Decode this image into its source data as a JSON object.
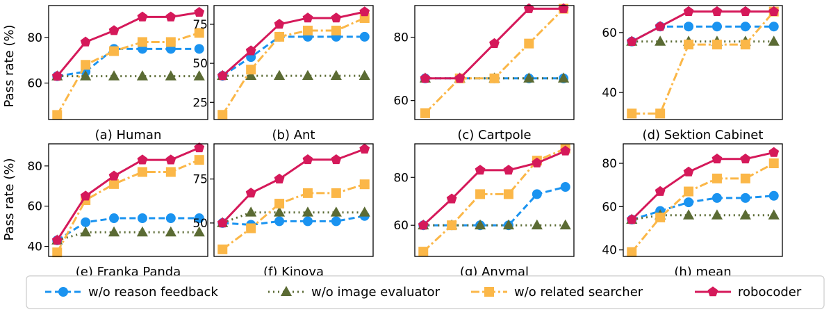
{
  "figure": {
    "ylabel": "Pass rate (%)",
    "legend_position": "bottom",
    "grid": false
  },
  "series_styles": [
    {
      "name": "w/o reason feedback",
      "color": "#1a93f0",
      "marker": "circle",
      "line": "dashed"
    },
    {
      "name": "w/o image evaluator",
      "color": "#5b6b34",
      "marker": "triangle",
      "line": "dotted"
    },
    {
      "name": "w/o related searcher",
      "color": "#fbb748",
      "marker": "square",
      "line": "dashdot"
    },
    {
      "name": "robocoder",
      "color": "#d5195a",
      "marker": "pentagon",
      "line": "solid"
    }
  ],
  "chart_data": [
    {
      "type": "line",
      "title": "(a) Human",
      "xlabel": "",
      "ylabel": "Pass rate (%)",
      "x": [
        1,
        2,
        3,
        4,
        5,
        6
      ],
      "xlim": [
        0.7,
        6.3
      ],
      "ylim": [
        44,
        94
      ],
      "yticks": [
        60,
        80
      ],
      "series": [
        {
          "name": "w/o reason feedback",
          "values": [
            63,
            65,
            75,
            75,
            75,
            75
          ]
        },
        {
          "name": "w/o image evaluator",
          "values": [
            63,
            63,
            63,
            63,
            63,
            63
          ]
        },
        {
          "name": "w/o related searcher",
          "values": [
            46,
            68,
            74,
            78,
            78,
            82
          ]
        },
        {
          "name": "robocoder",
          "values": [
            63,
            78,
            83,
            89,
            89,
            91
          ]
        }
      ]
    },
    {
      "type": "line",
      "title": "(b) Ant",
      "xlabel": "",
      "ylabel": "",
      "x": [
        1,
        2,
        3,
        4,
        5,
        6
      ],
      "xlim": [
        0.7,
        6.3
      ],
      "ylim": [
        14,
        87
      ],
      "yticks": [
        25,
        50,
        75
      ],
      "series": [
        {
          "name": "w/o reason feedback",
          "values": [
            42,
            54,
            67,
            67,
            67,
            67
          ]
        },
        {
          "name": "w/o image evaluator",
          "values": [
            42,
            42,
            42,
            42,
            42,
            42
          ]
        },
        {
          "name": "w/o related searcher",
          "values": [
            17,
            46,
            67,
            71,
            71,
            79
          ]
        },
        {
          "name": "robocoder",
          "values": [
            42,
            58,
            75,
            79,
            79,
            83
          ]
        }
      ]
    },
    {
      "type": "line",
      "title": "(c) Cartpole",
      "xlabel": "",
      "ylabel": "",
      "x": [
        1,
        2,
        3,
        4,
        5
      ],
      "xlim": [
        0.7,
        5.3
      ],
      "ylim": [
        54,
        90
      ],
      "yticks": [
        60,
        80
      ],
      "series": [
        {
          "name": "w/o reason feedback",
          "values": [
            67,
            67,
            67,
            67,
            67
          ]
        },
        {
          "name": "w/o image evaluator",
          "values": [
            67,
            67,
            67,
            67,
            67
          ]
        },
        {
          "name": "w/o related searcher",
          "values": [
            56,
            67,
            67,
            78,
            89
          ]
        },
        {
          "name": "robocoder",
          "values": [
            67,
            67,
            78,
            89,
            89
          ]
        }
      ]
    },
    {
      "type": "line",
      "title": "(d) Sektion Cabinet",
      "xlabel": "",
      "ylabel": "",
      "x": [
        1,
        2,
        3,
        4,
        5,
        6
      ],
      "xlim": [
        0.7,
        6.3
      ],
      "ylim": [
        31,
        69
      ],
      "yticks": [
        40,
        60
      ],
      "series": [
        {
          "name": "w/o reason feedback",
          "values": [
            57,
            62,
            62,
            62,
            62,
            62
          ]
        },
        {
          "name": "w/o image evaluator",
          "values": [
            57,
            57,
            57,
            57,
            57,
            57
          ]
        },
        {
          "name": "w/o related searcher",
          "values": [
            33,
            33,
            56,
            56,
            56,
            67
          ]
        },
        {
          "name": "robocoder",
          "values": [
            57,
            62,
            67,
            67,
            67,
            67
          ]
        }
      ]
    },
    {
      "type": "line",
      "title": "(e) Franka Panda",
      "xlabel": "",
      "ylabel": "Pass rate (%)",
      "x": [
        1,
        2,
        3,
        4,
        5,
        6
      ],
      "xlim": [
        0.7,
        6.3
      ],
      "ylim": [
        35,
        91
      ],
      "yticks": [
        40,
        60,
        80
      ],
      "series": [
        {
          "name": "w/o reason feedback",
          "values": [
            43,
            52,
            54,
            54,
            54,
            54
          ]
        },
        {
          "name": "w/o image evaluator",
          "values": [
            43,
            47,
            47,
            47,
            47,
            47
          ]
        },
        {
          "name": "w/o related searcher",
          "values": [
            37,
            63,
            71,
            77,
            77,
            83
          ]
        },
        {
          "name": "robocoder",
          "values": [
            43,
            65,
            75,
            83,
            83,
            89
          ]
        }
      ]
    },
    {
      "type": "line",
      "title": "(f) Kinova",
      "xlabel": "",
      "ylabel": "",
      "x": [
        1,
        2,
        3,
        4,
        5,
        6
      ],
      "xlim": [
        0.7,
        6.3
      ],
      "ylim": [
        31,
        95
      ],
      "yticks": [
        50,
        75
      ],
      "series": [
        {
          "name": "w/o reason feedback",
          "values": [
            50,
            49,
            51,
            51,
            51,
            54
          ]
        },
        {
          "name": "w/o image evaluator",
          "values": [
            50,
            56,
            56,
            56,
            56,
            56
          ]
        },
        {
          "name": "w/o related searcher",
          "values": [
            35,
            47,
            61,
            67,
            67,
            72
          ]
        },
        {
          "name": "robocoder",
          "values": [
            50,
            67,
            75,
            86,
            86,
            92
          ]
        }
      ]
    },
    {
      "type": "line",
      "title": "(g) Anymal",
      "xlabel": "",
      "ylabel": "",
      "x": [
        1,
        2,
        3,
        4,
        5,
        6
      ],
      "xlim": [
        0.7,
        6.3
      ],
      "ylim": [
        47,
        94
      ],
      "yticks": [
        60,
        80
      ],
      "series": [
        {
          "name": "w/o reason feedback",
          "values": [
            60,
            60,
            60,
            60,
            73,
            76
          ]
        },
        {
          "name": "w/o image evaluator",
          "values": [
            60,
            60,
            60,
            60,
            60,
            60
          ]
        },
        {
          "name": "w/o related searcher",
          "values": [
            49,
            60,
            73,
            73,
            87,
            92
          ]
        },
        {
          "name": "robocoder",
          "values": [
            60,
            71,
            83,
            83,
            86,
            91
          ]
        }
      ]
    },
    {
      "type": "line",
      "title": "(h) mean",
      "xlabel": "",
      "ylabel": "",
      "x": [
        1,
        2,
        3,
        4,
        5,
        6
      ],
      "xlim": [
        0.7,
        6.3
      ],
      "ylim": [
        37,
        89
      ],
      "yticks": [
        40,
        60,
        80
      ],
      "series": [
        {
          "name": "w/o reason feedback",
          "values": [
            54,
            58,
            62,
            64,
            64,
            65
          ]
        },
        {
          "name": "w/o image evaluator",
          "values": [
            54,
            56,
            56,
            56,
            56,
            56
          ]
        },
        {
          "name": "w/o related searcher",
          "values": [
            39,
            55,
            67,
            73,
            73,
            80
          ]
        },
        {
          "name": "robocoder",
          "values": [
            54,
            67,
            76,
            82,
            82,
            85
          ]
        }
      ]
    }
  ]
}
